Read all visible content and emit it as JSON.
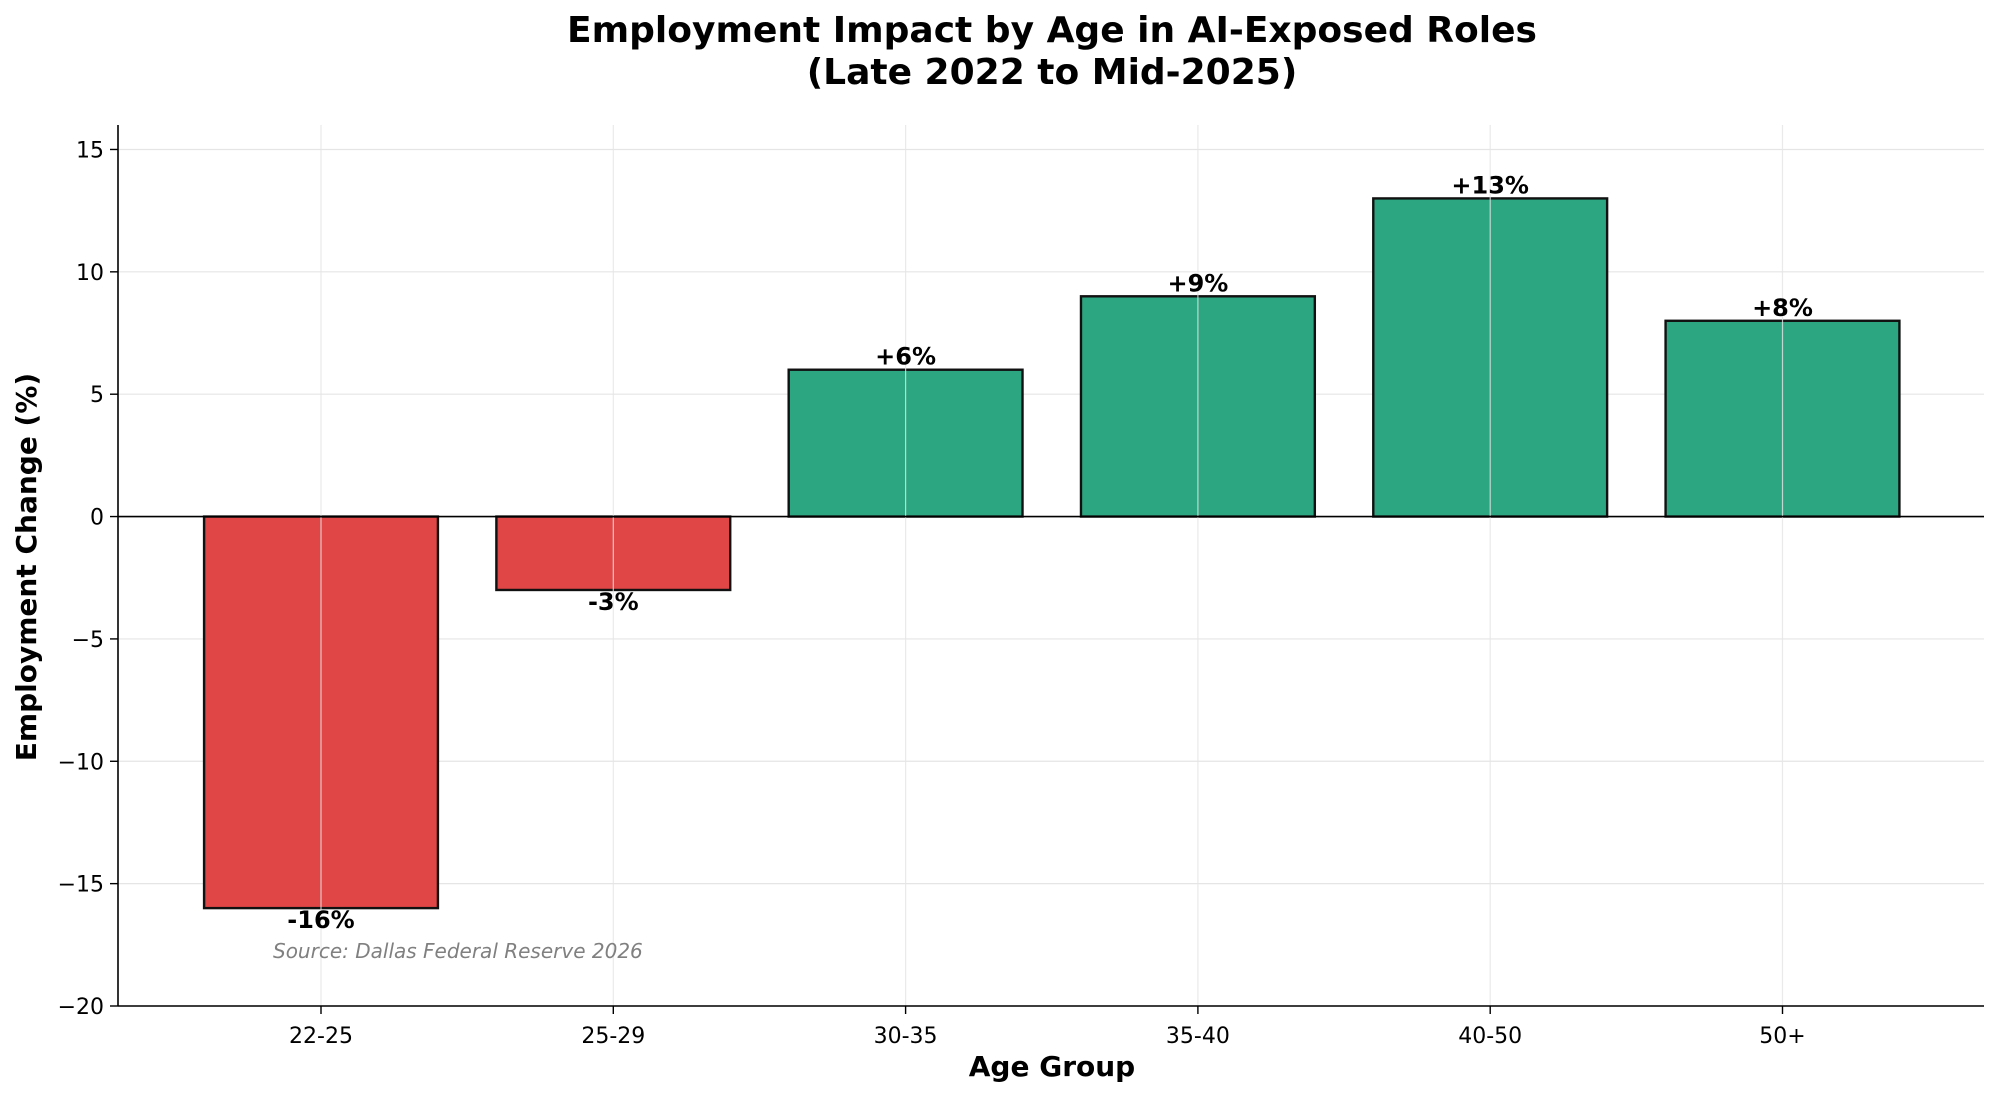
{
  "chart_data": {
    "type": "bar",
    "title_lines": [
      "Employment Impact by Age in AI-Exposed Roles",
      "(Late 2022 to Mid-2025)"
    ],
    "xlabel": "Age Group",
    "ylabel": "Employment Change (%)",
    "categories": [
      "22-25",
      "25-29",
      "30-35",
      "35-40",
      "40-50",
      "50+"
    ],
    "values": [
      -16,
      -3,
      6,
      9,
      13,
      8
    ],
    "data_labels": [
      "-16%",
      "-3%",
      "+6%",
      "+9%",
      "+13%",
      "+8%"
    ],
    "ylim": [
      -20,
      16
    ],
    "yticks": [
      -20,
      -15,
      -10,
      -5,
      0,
      5,
      10,
      15
    ],
    "ytick_labels": [
      "−20",
      "−15",
      "−10",
      "−5",
      "0",
      "5",
      "10",
      "15"
    ],
    "grid": true,
    "colors": {
      "negative": "#e04646",
      "positive": "#2ca680",
      "edge": "#111111"
    },
    "source_note": "Source: Dallas Federal Reserve 2026"
  }
}
